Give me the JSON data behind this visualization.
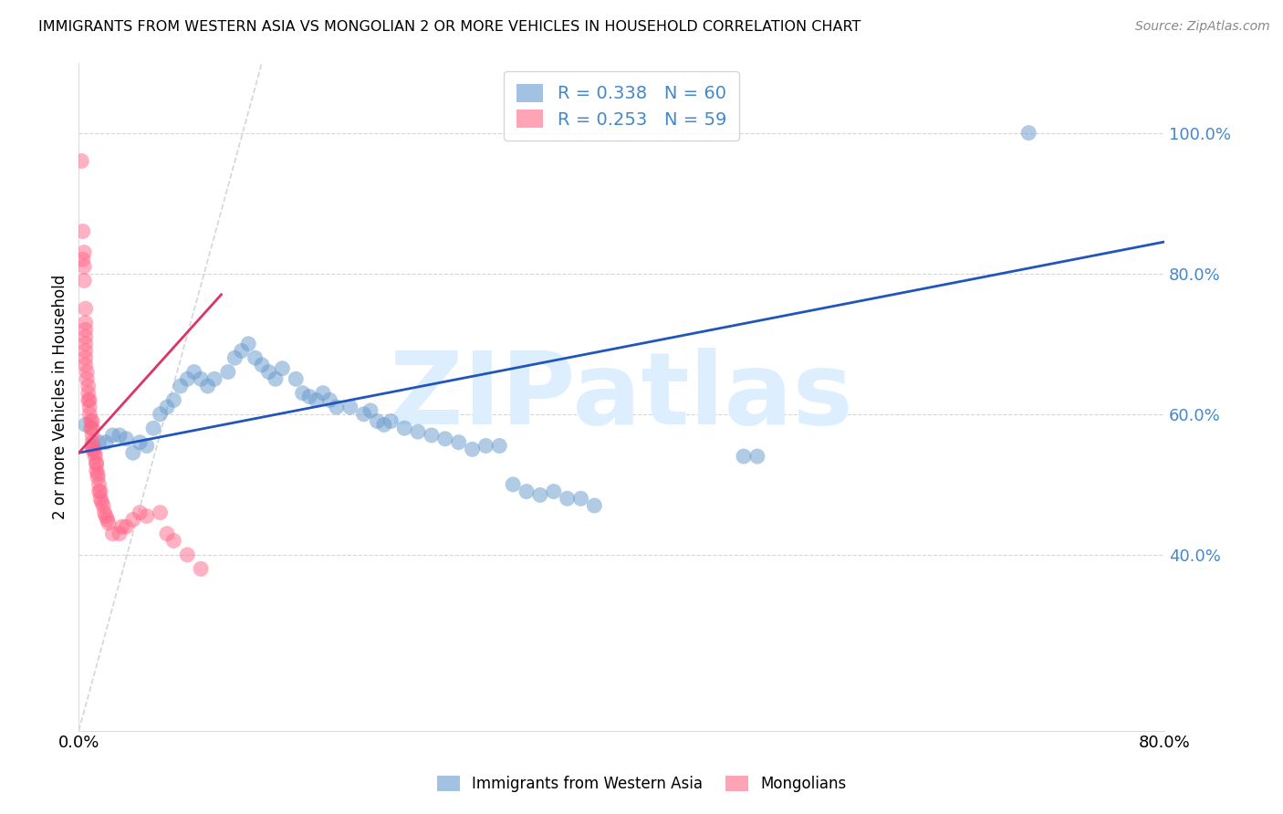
{
  "title": "IMMIGRANTS FROM WESTERN ASIA VS MONGOLIAN 2 OR MORE VEHICLES IN HOUSEHOLD CORRELATION CHART",
  "source": "Source: ZipAtlas.com",
  "ylabel": "2 or more Vehicles in Household",
  "legend_label1": "Immigrants from Western Asia",
  "legend_label2": "Mongolians",
  "R1": 0.338,
  "N1": 60,
  "R2": 0.253,
  "N2": 59,
  "xlim": [
    0.0,
    0.8
  ],
  "ylim": [
    0.15,
    1.1
  ],
  "yticks_right": [
    0.4,
    0.6,
    0.8,
    1.0
  ],
  "ytick_labels_right": [
    "40.0%",
    "60.0%",
    "80.0%",
    "100.0%"
  ],
  "xticks": [
    0.0,
    0.1,
    0.2,
    0.3,
    0.4,
    0.5,
    0.6,
    0.7,
    0.8
  ],
  "xtick_labels": [
    "0.0%",
    "",
    "",
    "",
    "",
    "",
    "",
    "",
    "80.0%"
  ],
  "color_blue": "#6699cc",
  "color_pink": "#ff6688",
  "color_trend_blue": "#2255bb",
  "color_trend_pink": "#dd3366",
  "color_ref_line": "#cccccc",
  "color_grid": "#cccccc",
  "color_right_labels": "#4488cc",
  "watermark_color": "#ddeeff",
  "blue_trend_x0": 0.0,
  "blue_trend_y0": 0.545,
  "blue_trend_x1": 0.8,
  "blue_trend_y1": 0.845,
  "pink_trend_x0": 0.0,
  "pink_trend_y0": 0.545,
  "pink_trend_x1": 0.105,
  "pink_trend_y1": 0.77,
  "ref_line_x0": 0.0,
  "ref_line_y0": 0.15,
  "ref_line_x1": 0.135,
  "ref_line_y1": 1.1,
  "blue_scatter_x": [
    0.005,
    0.01,
    0.015,
    0.02,
    0.025,
    0.03,
    0.035,
    0.04,
    0.045,
    0.05,
    0.055,
    0.06,
    0.065,
    0.07,
    0.075,
    0.08,
    0.085,
    0.09,
    0.095,
    0.1,
    0.11,
    0.115,
    0.12,
    0.125,
    0.13,
    0.135,
    0.14,
    0.145,
    0.15,
    0.16,
    0.165,
    0.17,
    0.175,
    0.18,
    0.185,
    0.19,
    0.2,
    0.21,
    0.215,
    0.22,
    0.225,
    0.23,
    0.24,
    0.25,
    0.26,
    0.27,
    0.28,
    0.29,
    0.3,
    0.31,
    0.32,
    0.33,
    0.34,
    0.35,
    0.36,
    0.37,
    0.38,
    0.49,
    0.5,
    0.7
  ],
  "blue_scatter_y": [
    0.585,
    0.555,
    0.56,
    0.56,
    0.57,
    0.57,
    0.565,
    0.545,
    0.56,
    0.555,
    0.58,
    0.6,
    0.61,
    0.62,
    0.64,
    0.65,
    0.66,
    0.65,
    0.64,
    0.65,
    0.66,
    0.68,
    0.69,
    0.7,
    0.68,
    0.67,
    0.66,
    0.65,
    0.665,
    0.65,
    0.63,
    0.625,
    0.62,
    0.63,
    0.62,
    0.61,
    0.61,
    0.6,
    0.605,
    0.59,
    0.585,
    0.59,
    0.58,
    0.575,
    0.57,
    0.565,
    0.56,
    0.55,
    0.555,
    0.555,
    0.5,
    0.49,
    0.485,
    0.49,
    0.48,
    0.48,
    0.47,
    0.54,
    0.54,
    1.0
  ],
  "pink_scatter_x": [
    0.002,
    0.003,
    0.003,
    0.004,
    0.004,
    0.004,
    0.005,
    0.005,
    0.005,
    0.005,
    0.005,
    0.005,
    0.005,
    0.005,
    0.006,
    0.006,
    0.007,
    0.007,
    0.007,
    0.008,
    0.008,
    0.008,
    0.009,
    0.009,
    0.01,
    0.01,
    0.01,
    0.01,
    0.01,
    0.011,
    0.012,
    0.012,
    0.013,
    0.013,
    0.013,
    0.014,
    0.014,
    0.015,
    0.015,
    0.016,
    0.016,
    0.017,
    0.018,
    0.019,
    0.02,
    0.021,
    0.022,
    0.025,
    0.03,
    0.032,
    0.035,
    0.04,
    0.045,
    0.05,
    0.06,
    0.065,
    0.07,
    0.08,
    0.09
  ],
  "pink_scatter_y": [
    0.96,
    0.86,
    0.82,
    0.83,
    0.81,
    0.79,
    0.75,
    0.73,
    0.72,
    0.71,
    0.7,
    0.69,
    0.68,
    0.67,
    0.66,
    0.65,
    0.64,
    0.63,
    0.62,
    0.62,
    0.61,
    0.6,
    0.59,
    0.58,
    0.59,
    0.58,
    0.57,
    0.56,
    0.55,
    0.55,
    0.545,
    0.54,
    0.53,
    0.53,
    0.52,
    0.515,
    0.51,
    0.5,
    0.49,
    0.49,
    0.48,
    0.475,
    0.47,
    0.46,
    0.455,
    0.45,
    0.445,
    0.43,
    0.43,
    0.44,
    0.44,
    0.45,
    0.46,
    0.455,
    0.46,
    0.43,
    0.42,
    0.4,
    0.38
  ]
}
